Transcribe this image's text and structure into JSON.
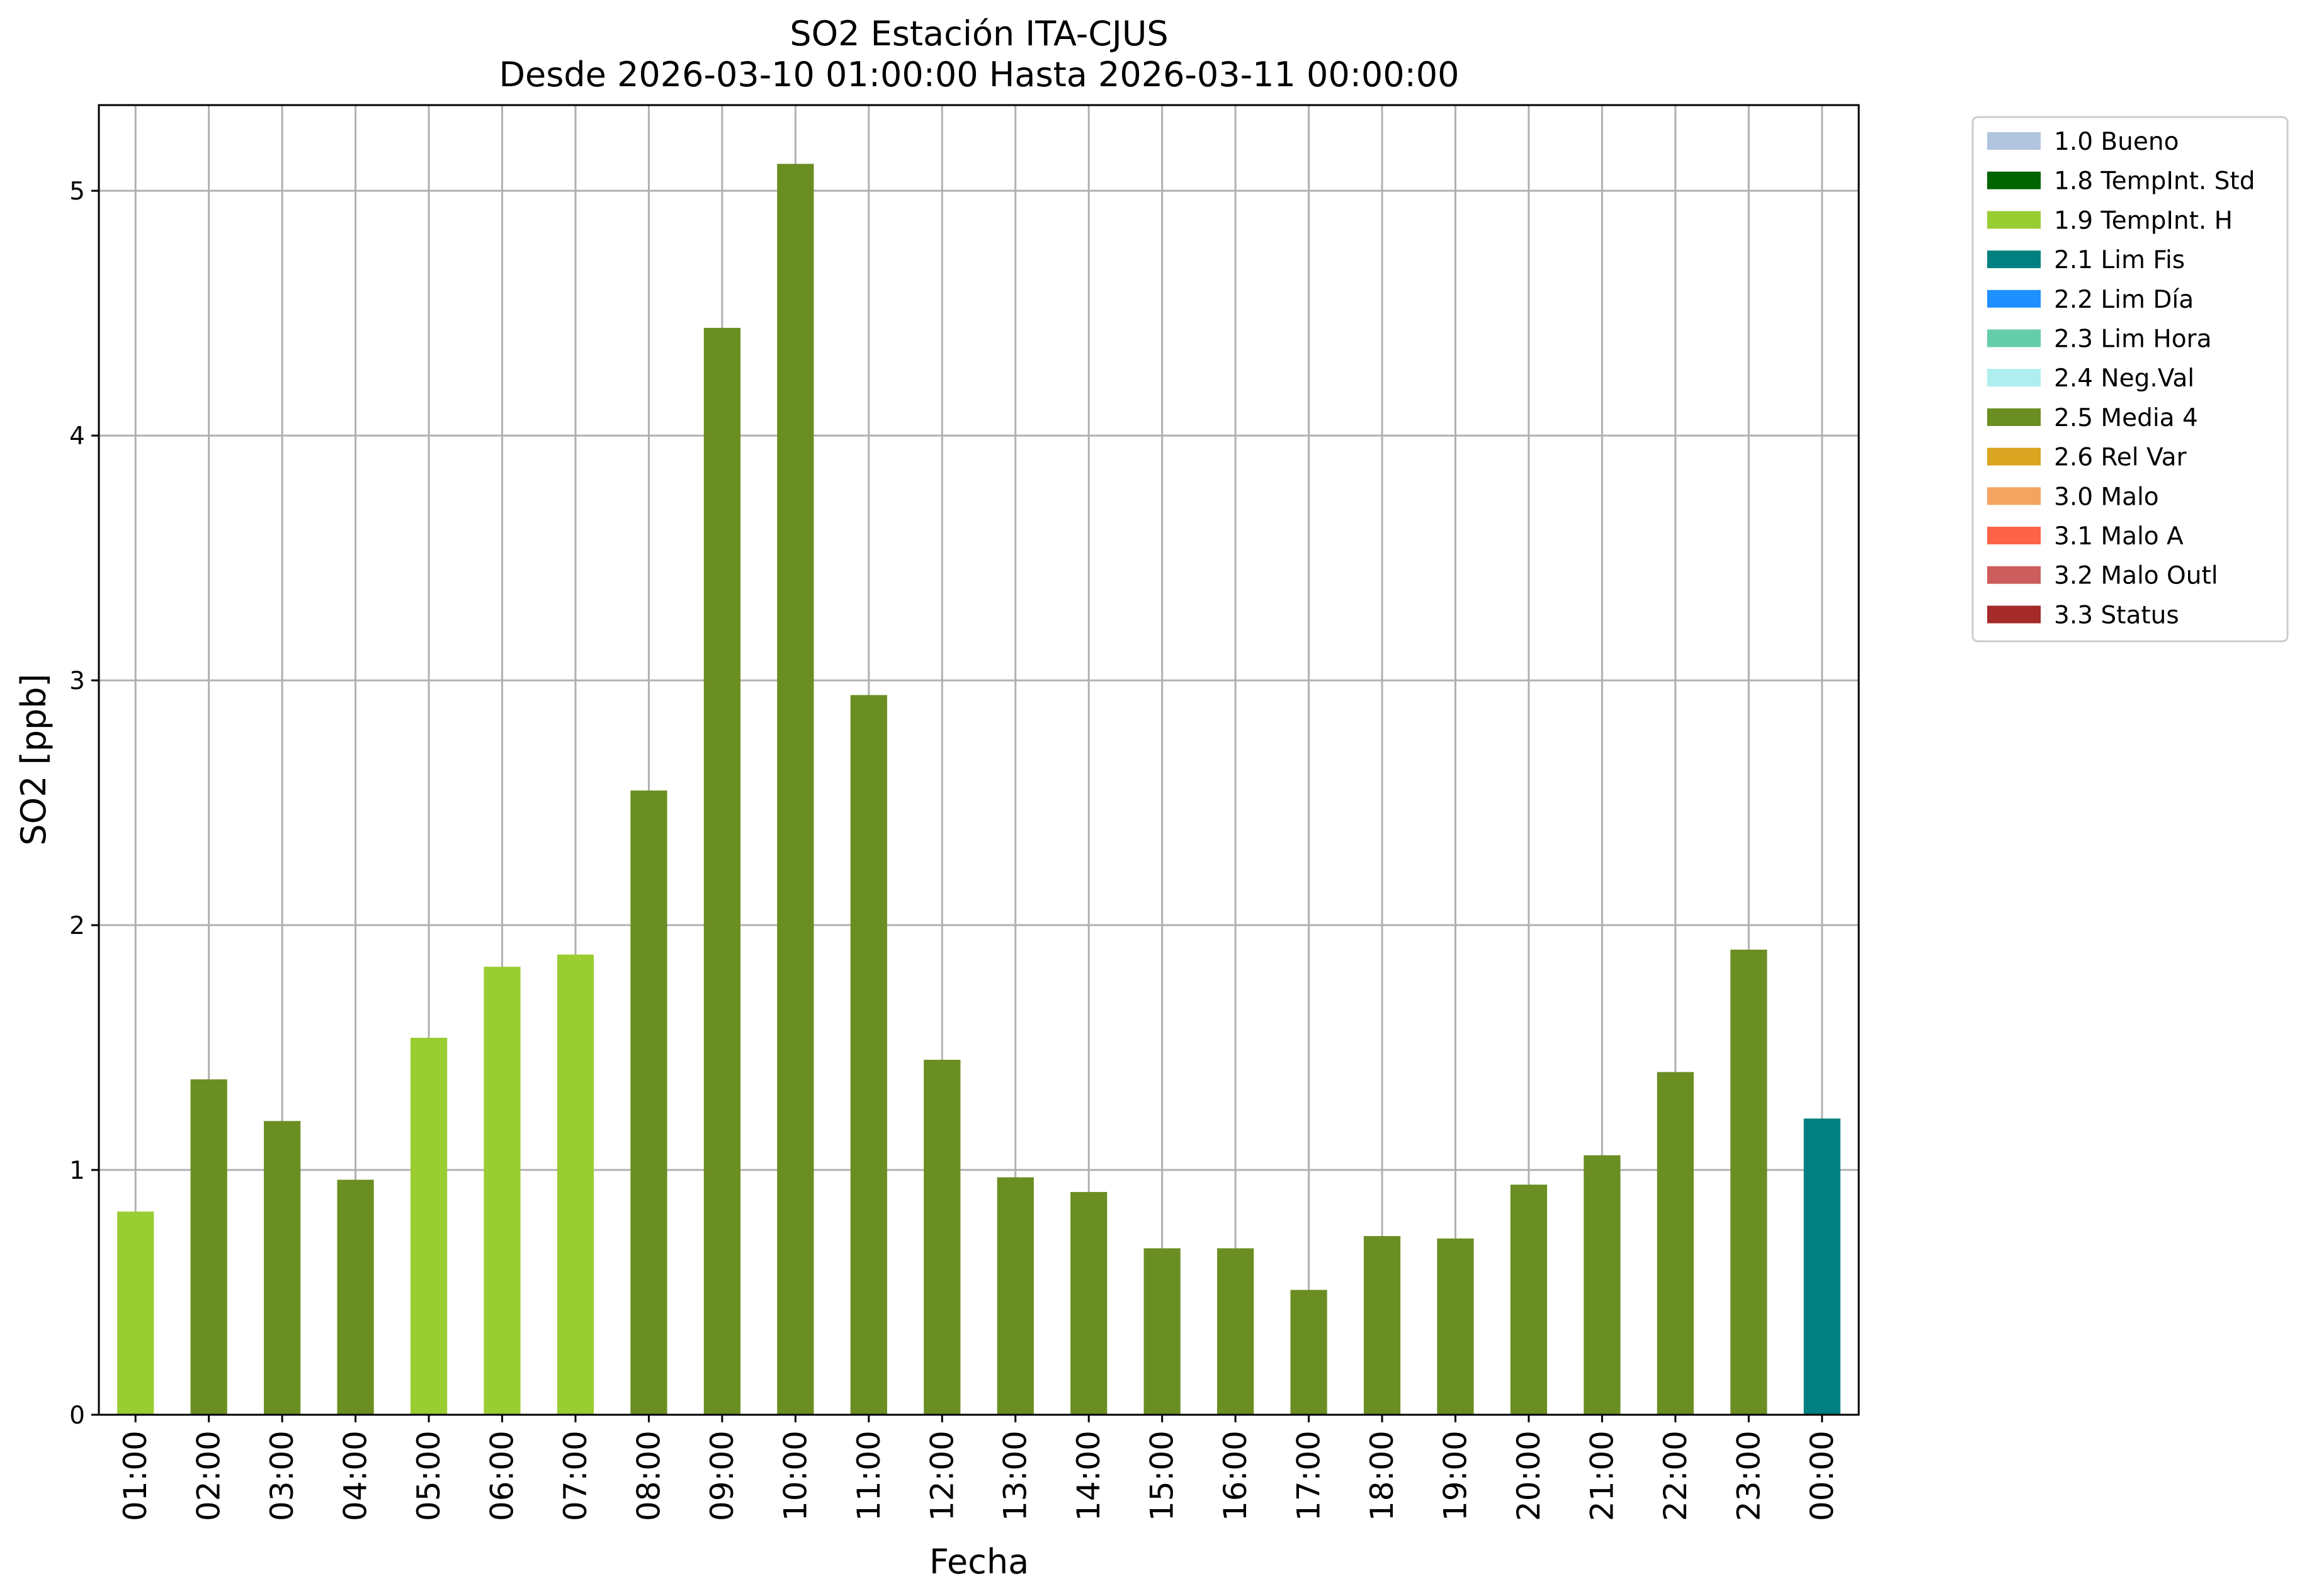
{
  "chart_data": {
    "type": "bar",
    "title": "SO2 Estación ITA-CJUS",
    "subtitle": "Desde 2026-03-10 01:00:00 Hasta 2026-03-11 00:00:00",
    "xlabel": "Fecha",
    "ylabel": "SO2 [ppb]",
    "ylim": [
      0,
      5.35
    ],
    "yticks": [
      0,
      1,
      2,
      3,
      4,
      5
    ],
    "grid": true,
    "legend_position": "outside-top-right",
    "categories": [
      "01:00",
      "02:00",
      "03:00",
      "04:00",
      "05:00",
      "06:00",
      "07:00",
      "08:00",
      "09:00",
      "10:00",
      "11:00",
      "12:00",
      "13:00",
      "14:00",
      "15:00",
      "16:00",
      "17:00",
      "18:00",
      "19:00",
      "20:00",
      "21:00",
      "22:00",
      "23:00",
      "00:00"
    ],
    "values": [
      0.83,
      1.37,
      1.2,
      0.96,
      1.54,
      1.83,
      1.88,
      2.55,
      4.44,
      5.11,
      2.94,
      1.45,
      0.97,
      0.91,
      0.68,
      0.68,
      0.51,
      0.73,
      0.72,
      0.94,
      1.06,
      1.4,
      1.9,
      1.21
    ],
    "flags": [
      "1.9 TempInt. H",
      "2.5 Media 4",
      "2.5 Media 4",
      "2.5 Media 4",
      "1.9 TempInt. H",
      "1.9 TempInt. H",
      "1.9 TempInt. H",
      "2.5 Media 4",
      "2.5 Media 4",
      "2.5 Media 4",
      "2.5 Media 4",
      "2.5 Media 4",
      "2.5 Media 4",
      "2.5 Media 4",
      "2.5 Media 4",
      "2.5 Media 4",
      "2.5 Media 4",
      "2.5 Media 4",
      "2.5 Media 4",
      "2.5 Media 4",
      "2.5 Media 4",
      "2.5 Media 4",
      "2.5 Media 4",
      "2.1 Lim Fis"
    ],
    "legend": [
      {
        "label": "1.0 Bueno",
        "color": "#b0c4de"
      },
      {
        "label": "1.8 TempInt. Std",
        "color": "#006400"
      },
      {
        "label": "1.9 TempInt. H",
        "color": "#9acd32"
      },
      {
        "label": "2.1 Lim Fis",
        "color": "#008080"
      },
      {
        "label": "2.2 Lim Día",
        "color": "#1e90ff"
      },
      {
        "label": "2.3 Lim Hora",
        "color": "#66cdaa"
      },
      {
        "label": "2.4 Neg.Val",
        "color": "#afeeee"
      },
      {
        "label": "2.5 Media 4",
        "color": "#6b8e23"
      },
      {
        "label": "2.6 Rel Var",
        "color": "#daa520"
      },
      {
        "label": "3.0 Malo",
        "color": "#f4a460"
      },
      {
        "label": "3.1 Malo A",
        "color": "#ff6347"
      },
      {
        "label": "3.2 Malo Outl",
        "color": "#cd5c5c"
      },
      {
        "label": "3.3 Status",
        "color": "#a52a2a"
      }
    ]
  }
}
